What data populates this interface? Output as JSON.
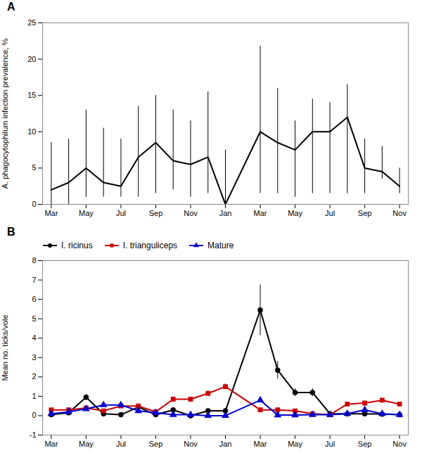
{
  "chart_data": [
    {
      "type": "line",
      "title": "A",
      "ylabel": "A. phagocytophilum infection prevalence, %",
      "x": [
        0,
        1,
        2,
        3,
        4,
        5,
        6,
        7,
        8,
        9,
        10,
        12,
        13,
        14,
        15,
        16,
        17,
        18,
        19,
        20
      ],
      "xlim": [
        -0.5,
        20.5
      ],
      "xticks": [
        {
          "value": 0,
          "label": "Mar"
        },
        {
          "value": 2,
          "label": "May"
        },
        {
          "value": 4,
          "label": "Jul"
        },
        {
          "value": 6,
          "label": "Sep"
        },
        {
          "value": 8,
          "label": "Nov"
        },
        {
          "value": 10,
          "label": "Jan"
        },
        {
          "value": 12,
          "label": "Mar"
        },
        {
          "value": 14,
          "label": "May"
        },
        {
          "value": 16,
          "label": "Jul"
        },
        {
          "value": 18,
          "label": "Sep"
        },
        {
          "value": 20,
          "label": "Nov"
        }
      ],
      "ylim": [
        0,
        25
      ],
      "yticks": [
        0,
        5,
        10,
        15,
        20,
        25
      ],
      "series": [
        {
          "color": "#000000",
          "values": [
            2.0,
            3.0,
            5.0,
            3.0,
            2.5,
            6.5,
            8.5,
            6.0,
            5.5,
            6.5,
            0.0,
            10.0,
            8.5,
            7.5,
            10.0,
            10.0,
            12.0,
            5.0,
            4.5,
            2.5
          ],
          "error_low": [
            0,
            0,
            1,
            1,
            1,
            1,
            1.5,
            2,
            1,
            1.5,
            0,
            1.5,
            1.5,
            1,
            1.5,
            1.5,
            1.5,
            1.5,
            3.5,
            1.5
          ],
          "error_high": [
            8.5,
            9.0,
            13.0,
            10.5,
            9.0,
            13.5,
            15.0,
            13.0,
            11.5,
            15.5,
            7.5,
            21.8,
            16.0,
            11.5,
            14.5,
            14.0,
            16.5,
            9.0,
            8.0,
            5.0
          ]
        }
      ]
    },
    {
      "type": "line",
      "title": "B",
      "ylabel": "Mean no. ticks/vole",
      "x": [
        0,
        1,
        2,
        3,
        4,
        5,
        6,
        7,
        8,
        9,
        10,
        12,
        13,
        14,
        15,
        16,
        17,
        18,
        19,
        20
      ],
      "xlim": [
        -0.5,
        20.5
      ],
      "xticks": [
        {
          "value": 0,
          "label": "Mar"
        },
        {
          "value": 2,
          "label": "May"
        },
        {
          "value": 4,
          "label": "Jul"
        },
        {
          "value": 6,
          "label": "Sep"
        },
        {
          "value": 8,
          "label": "Nov"
        },
        {
          "value": 10,
          "label": "Jan"
        },
        {
          "value": 12,
          "label": "Mar"
        },
        {
          "value": 14,
          "label": "May"
        },
        {
          "value": 16,
          "label": "Jul"
        },
        {
          "value": 18,
          "label": "Sep"
        },
        {
          "value": 20,
          "label": "Nov"
        }
      ],
      "ylim": [
        -1,
        8
      ],
      "yticks": [
        -1,
        0,
        1,
        2,
        3,
        4,
        5,
        6,
        7,
        8
      ],
      "legend": "upper left",
      "series": [
        {
          "name": "I. ricinus",
          "color": "#000000",
          "marker": "circle",
          "values": [
            0.05,
            0.15,
            0.95,
            0.1,
            0.05,
            0.45,
            0.05,
            0.3,
            0.0,
            0.25,
            0.25,
            5.45,
            2.35,
            1.2,
            1.2,
            0.1,
            0.1,
            0.1,
            0.08,
            0.05
          ],
          "yerr": [
            0.03,
            0.05,
            0.15,
            0.05,
            0.03,
            0.1,
            0.03,
            0.08,
            0.02,
            0.05,
            0.05,
            1.3,
            0.45,
            0.2,
            0.2,
            0.05,
            0.05,
            0.05,
            0.04,
            0.03
          ]
        },
        {
          "name": "I. trianguliceps",
          "color": "#cc0000",
          "marker": "square",
          "values": [
            0.3,
            0.3,
            0.4,
            0.25,
            0.5,
            0.5,
            0.2,
            0.85,
            0.85,
            1.15,
            1.5,
            0.3,
            0.3,
            0.25,
            0.1,
            0.05,
            0.6,
            0.65,
            0.8,
            0.6
          ],
          "yerr": [
            0.07,
            0.07,
            0.1,
            0.07,
            0.08,
            0.08,
            0.06,
            0.12,
            0.1,
            0.12,
            0.15,
            0.07,
            0.07,
            0.06,
            0.04,
            0.04,
            0.07,
            0.08,
            0.1,
            0.08
          ]
        },
        {
          "name": "Mature",
          "color": "#0000cc",
          "marker": "triangle",
          "values": [
            0.1,
            0.2,
            0.35,
            0.55,
            0.55,
            0.25,
            0.15,
            0.05,
            0.05,
            0.0,
            0.0,
            0.8,
            0.03,
            0.03,
            0.05,
            0.05,
            0.1,
            0.3,
            0.1,
            0.05
          ],
          "yerr": [
            0.05,
            0.07,
            0.1,
            0.1,
            0.1,
            0.07,
            0.05,
            0.03,
            0.03,
            0.01,
            0.01,
            0.1,
            0.02,
            0.02,
            0.03,
            0.03,
            0.05,
            0.07,
            0.05,
            0.03
          ]
        }
      ]
    }
  ]
}
